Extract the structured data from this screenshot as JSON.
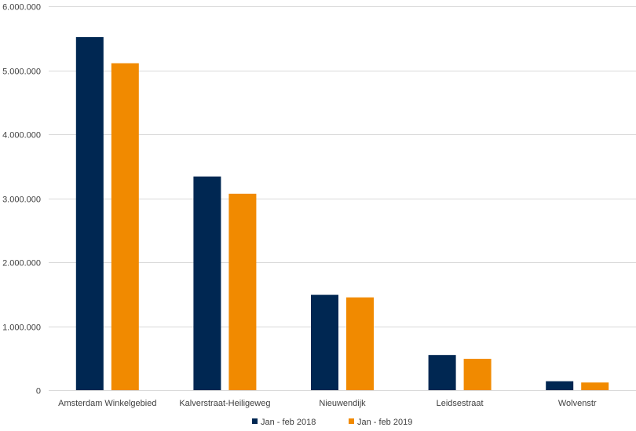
{
  "chart_data": {
    "type": "bar",
    "title": "",
    "xlabel": "",
    "ylabel": "",
    "categories": [
      "Amsterdam Winkelgebied",
      "Kalverstraat-Heiligeweg",
      "Nieuwendijk",
      "Leidsestraat",
      "Wolvenstr"
    ],
    "series": [
      {
        "name": "Jan - feb 2018",
        "color": "#002752",
        "values": [
          5520000,
          3340000,
          1490000,
          550000,
          140000
        ]
      },
      {
        "name": "Jan - feb 2019",
        "color": "#F18A00",
        "values": [
          5110000,
          3070000,
          1450000,
          490000,
          120000
        ]
      }
    ],
    "ylim": [
      0,
      6000000
    ],
    "yticks": [
      0,
      1000000,
      2000000,
      3000000,
      4000000,
      5000000,
      6000000
    ],
    "ytick_labels": [
      "0",
      "1.000.000",
      "2.000.000",
      "3.000.000",
      "4.000.000",
      "5.000.000",
      "6.000.000"
    ],
    "grid": true,
    "legend_position": "bottom",
    "gridline_color": "#d9d9d9",
    "text_color": "#404040"
  }
}
